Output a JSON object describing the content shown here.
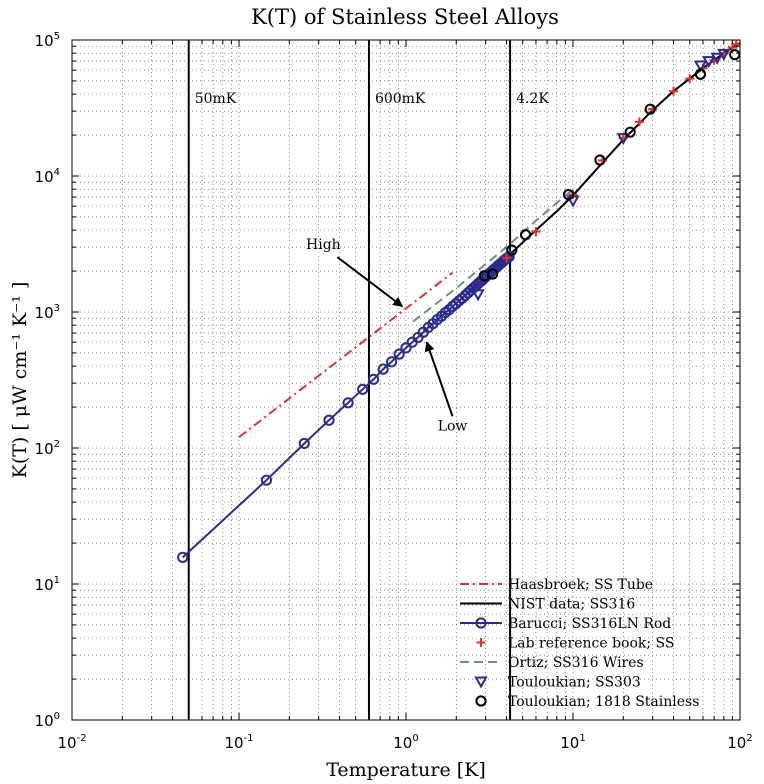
{
  "chart_data": {
    "type": "scatter",
    "title": "K(T) of Stainless Steel Alloys",
    "xlabel": "Temperature [K]",
    "ylabel": "K(T) [ μW cm⁻¹ K⁻¹ ]",
    "xscale": "log",
    "yscale": "log",
    "xlim": [
      0.01,
      100
    ],
    "ylim": [
      1,
      100000
    ],
    "grid": true,
    "legend_position": "lower-right",
    "x_ticks": [
      {
        "value": 0.01,
        "base": "10",
        "exp": "-2"
      },
      {
        "value": 0.1,
        "base": "10",
        "exp": "-1"
      },
      {
        "value": 1,
        "base": "10",
        "exp": "0"
      },
      {
        "value": 10,
        "base": "10",
        "exp": "1"
      },
      {
        "value": 100,
        "base": "10",
        "exp": "2"
      }
    ],
    "y_ticks": [
      {
        "value": 1,
        "base": "10",
        "exp": "0"
      },
      {
        "value": 10,
        "base": "10",
        "exp": "1"
      },
      {
        "value": 100,
        "base": "10",
        "exp": "2"
      },
      {
        "value": 1000,
        "base": "10",
        "exp": "3"
      },
      {
        "value": 10000,
        "base": "10",
        "exp": "4"
      },
      {
        "value": 100000,
        "base": "10",
        "exp": "5"
      }
    ],
    "vertical_lines": [
      {
        "x": 0.05,
        "label": "50mK"
      },
      {
        "x": 0.6,
        "label": "600mK"
      },
      {
        "x": 4.2,
        "label": "4.2K"
      }
    ],
    "annotations": [
      {
        "text": "High",
        "text_at": [
          0.32,
          2900
        ],
        "arrow_to": [
          0.95,
          1100
        ]
      },
      {
        "text": "Low",
        "text_at": [
          1.9,
          135
        ],
        "arrow_to": [
          1.33,
          600
        ]
      }
    ],
    "series": [
      {
        "name": "Haasbroek; SS Tube",
        "style": "dashdot",
        "color": "#e03030",
        "x": [
          0.1,
          1.9
        ],
        "y": [
          120,
          1950
        ]
      },
      {
        "name": "NIST data; SS316",
        "style": "line",
        "color": "#000000",
        "x": [
          4,
          5,
          6,
          8,
          10,
          15,
          20,
          30,
          40,
          60,
          80,
          100
        ],
        "y": [
          2500,
          3250,
          4000,
          5500,
          7200,
          12500,
          18500,
          30500,
          42000,
          62000,
          80000,
          95000
        ]
      },
      {
        "name": "Barucci; SS316LN Rod",
        "style": "line-circle",
        "color": "#2b2b8c",
        "x": [
          0.046,
          0.146,
          0.246,
          0.346,
          0.45,
          0.55,
          0.64,
          0.73,
          0.82,
          0.91,
          1.0,
          1.09,
          1.18,
          1.27,
          1.36,
          1.45,
          1.54,
          1.63,
          1.72,
          1.81,
          1.9,
          1.99,
          2.08,
          2.17,
          2.26,
          2.35,
          2.44,
          2.53,
          2.62,
          2.71,
          2.8,
          2.89,
          2.98,
          3.07,
          3.16,
          3.25,
          3.34,
          3.43,
          3.52,
          3.61,
          3.7,
          3.79,
          3.88,
          3.97,
          4.06,
          4.15
        ],
        "y": [
          15.7,
          58,
          108,
          160,
          215,
          270,
          320,
          380,
          430,
          490,
          545,
          600,
          650,
          710,
          770,
          820,
          880,
          930,
          990,
          1040,
          1100,
          1150,
          1210,
          1260,
          1320,
          1380,
          1440,
          1500,
          1560,
          1620,
          1680,
          1740,
          1800,
          1860,
          1920,
          1980,
          2040,
          2100,
          2160,
          2220,
          2280,
          2340,
          2400,
          2460,
          2500,
          2560
        ]
      },
      {
        "name": "Lab reference book; SS",
        "style": "plus",
        "color": "#e03030",
        "x": [
          4,
          6,
          10,
          15,
          20,
          25,
          30,
          40,
          50,
          60,
          70,
          80,
          90,
          95
        ],
        "y": [
          2500,
          3900,
          7300,
          13000,
          19000,
          25000,
          31000,
          42000,
          52000,
          62000,
          71000,
          80000,
          88000,
          93000
        ]
      },
      {
        "name": "Ortiz; SS316 Wires",
        "style": "dash",
        "color": "#6d8c8c",
        "x": [
          1.1,
          2,
          4,
          6,
          10
        ],
        "y": [
          850,
          1500,
          3000,
          4700,
          8000
        ]
      },
      {
        "name": "Touloukian; SS303",
        "style": "triangle-down",
        "color": "#2b2b8c",
        "x": [
          2.7,
          10,
          20,
          58,
          65,
          73,
          80
        ],
        "y": [
          1350,
          6600,
          19000,
          65000,
          70000,
          74000,
          79000
        ]
      },
      {
        "name": "Touloukian; 1818 Stainless",
        "style": "circle",
        "color": "#000000",
        "x": [
          2.95,
          3.3,
          4.3,
          5.2,
          9.4,
          14.5,
          22,
          29,
          58,
          93
        ],
        "y": [
          1850,
          1900,
          2850,
          3700,
          7300,
          13100,
          21000,
          31000,
          56000,
          78000
        ]
      }
    ]
  }
}
